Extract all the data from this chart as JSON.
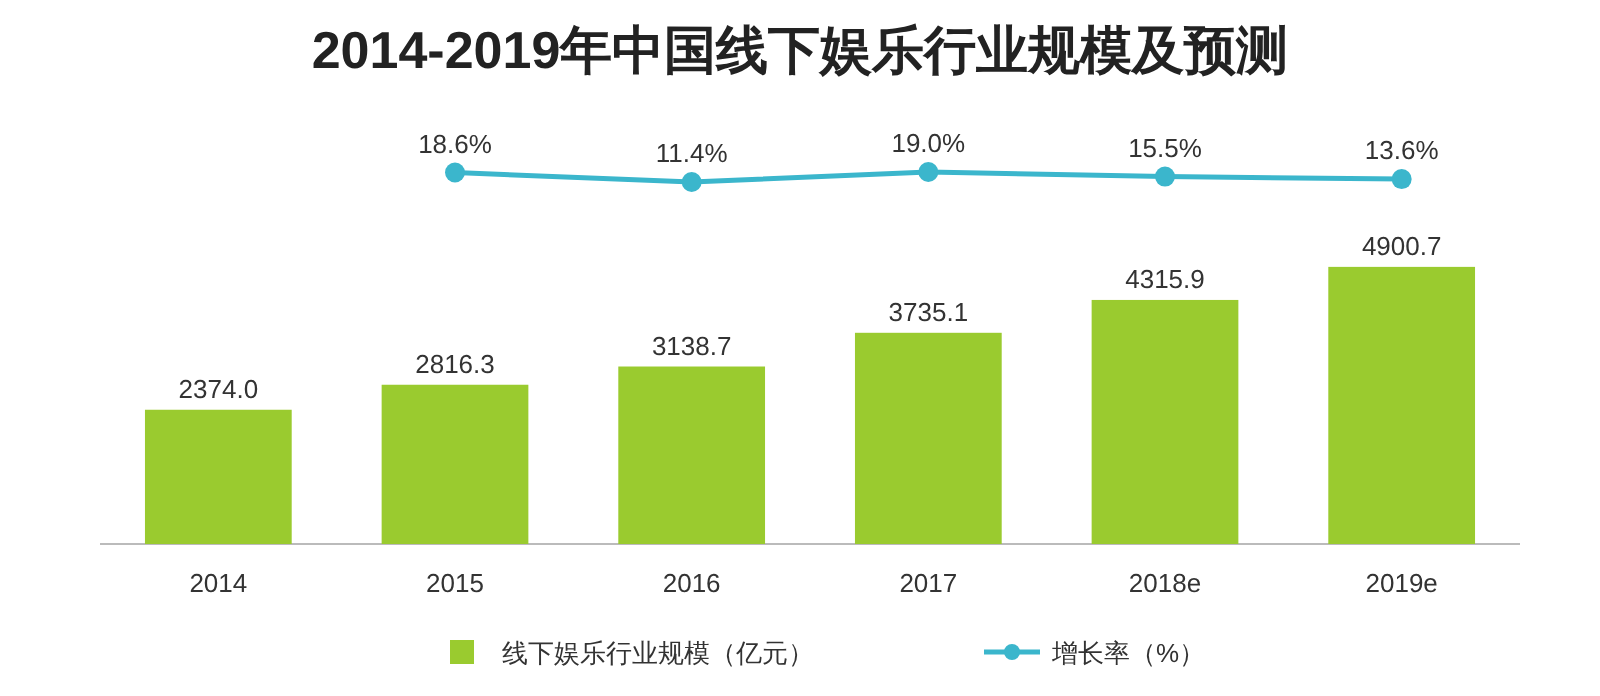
{
  "chart_data": [
    {
      "type": "bar",
      "categories": [
        "2014",
        "2015",
        "2016",
        "2017",
        "2018e",
        "2019e"
      ],
      "series": [
        {
          "name": "线下娱乐行业规模（亿元）",
          "color": "#9acb2f",
          "values": [
            2374.0,
            2816.3,
            3138.7,
            3735.1,
            4315.9,
            4900.7
          ],
          "value_labels": [
            "2374.0",
            "2816.3",
            "3138.7",
            "3735.1",
            "4315.9",
            "4900.7"
          ]
        }
      ],
      "legend": "bottom"
    },
    {
      "type": "line",
      "title": "2014-2019年中国线下娱乐行业规模及预测",
      "categories": [
        null,
        null,
        null,
        null,
        null
      ],
      "series": [
        {
          "name": "增长率（%）",
          "color": "#3bb6cc",
          "marker": "circle",
          "values": [
            18.6,
            11.4,
            19.0,
            15.5,
            13.6
          ],
          "value_labels": [
            "18.6%",
            "11.4%",
            "19.0%",
            "15.5%",
            "13.6%"
          ]
        }
      ],
      "legend": "bottom"
    }
  ]
}
